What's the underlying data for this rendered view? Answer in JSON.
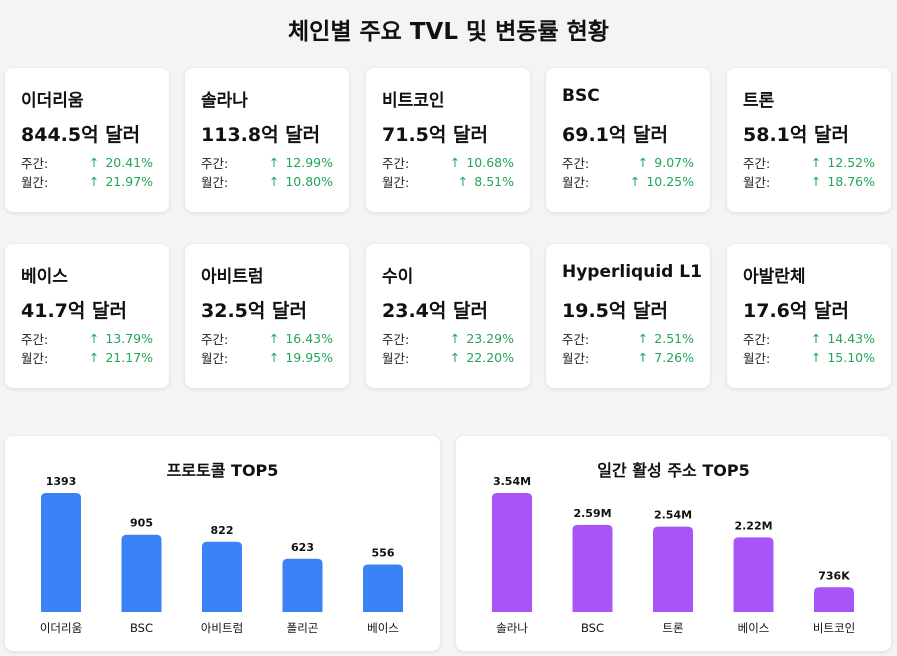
{
  "title": "체인별 주요 TVL 및 변동률 현황",
  "labels": {
    "weekly": "주간:",
    "monthly": "월간:",
    "arrow": "↑"
  },
  "chains": [
    {
      "name": "이더리움",
      "tvl": "844.5억 달러",
      "weekly": "20.41%",
      "monthly": "21.97%"
    },
    {
      "name": "솔라나",
      "tvl": "113.8억 달러",
      "weekly": "12.99%",
      "monthly": "10.80%"
    },
    {
      "name": "비트코인",
      "tvl": "71.5억 달러",
      "weekly": "10.68%",
      "monthly": "8.51%"
    },
    {
      "name": "BSC",
      "tvl": "69.1억 달러",
      "weekly": "9.07%",
      "monthly": "10.25%"
    },
    {
      "name": "트론",
      "tvl": "58.1억 달러",
      "weekly": "12.52%",
      "monthly": "18.76%"
    },
    {
      "name": "베이스",
      "tvl": "41.7억 달러",
      "weekly": "13.79%",
      "monthly": "21.17%"
    },
    {
      "name": "아비트럼",
      "tvl": "32.5억 달러",
      "weekly": "16.43%",
      "monthly": "19.95%"
    },
    {
      "name": "수이",
      "tvl": "23.4억 달러",
      "weekly": "23.29%",
      "monthly": "22.20%"
    },
    {
      "name": "Hyperliquid L1",
      "tvl": "19.5억 달러",
      "weekly": "2.51%",
      "monthly": "7.26%"
    },
    {
      "name": "아발란체",
      "tvl": "17.6억 달러",
      "weekly": "14.43%",
      "monthly": "15.10%"
    }
  ],
  "colors": {
    "up": "#22a55a",
    "protocol_bar": "#3b82f6",
    "address_bar": "#a855f7"
  },
  "chart_data": [
    {
      "type": "bar",
      "title": "프로토콜 TOP5",
      "categories": [
        "이더리움",
        "BSC",
        "아비트럼",
        "폴리곤",
        "베이스"
      ],
      "values": [
        1393,
        905,
        822,
        623,
        556
      ],
      "value_labels": [
        "1393",
        "905",
        "822",
        "623",
        "556"
      ],
      "color": "#3b82f6"
    },
    {
      "type": "bar",
      "title": "일간 활성 주소 TOP5",
      "categories": [
        "솔라나",
        "BSC",
        "트론",
        "베이스",
        "비트코인"
      ],
      "values": [
        3540000,
        2590000,
        2540000,
        2220000,
        736000
      ],
      "value_labels": [
        "3.54M",
        "2.59M",
        "2.54M",
        "2.22M",
        "736K"
      ],
      "color": "#a855f7"
    }
  ]
}
